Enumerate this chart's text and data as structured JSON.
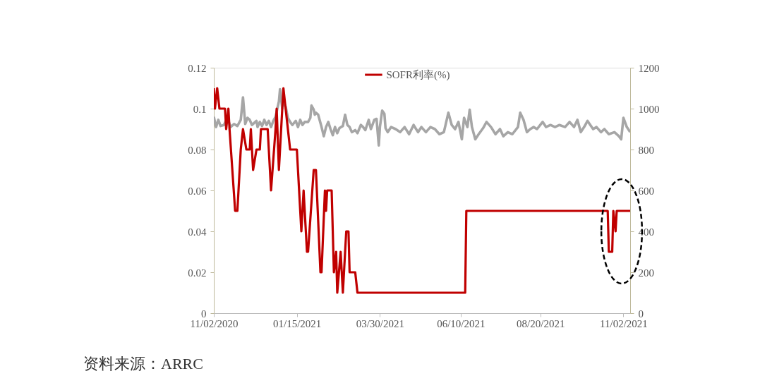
{
  "chart_data": {
    "type": "line",
    "series": [
      {
        "name": "SOFR利率(%)",
        "color": "#c00000",
        "x": [
          "2020-11-02",
          "2020-11-03",
          "2020-11-05",
          "2020-11-07",
          "2020-11-12",
          "2020-11-13",
          "2020-11-15",
          "2020-11-16",
          "2020-11-21",
          "2020-11-23",
          "2020-11-26",
          "2020-11-28",
          "2020-12-01",
          "2020-12-04",
          "2020-12-05",
          "2020-12-07",
          "2020-12-10",
          "2020-12-13",
          "2020-12-14",
          "2020-12-20",
          "2020-12-23",
          "2020-12-27",
          "2020-12-28",
          "2020-12-30",
          "2021-01-02",
          "2021-01-03",
          "2021-01-05",
          "2021-01-07",
          "2021-01-09",
          "2021-01-15",
          "2021-01-19",
          "2021-01-21",
          "2021-01-24",
          "2021-01-25",
          "2021-01-30",
          "2021-02-01",
          "2021-02-05",
          "2021-02-06",
          "2021-02-09",
          "2021-02-10",
          "2021-02-11",
          "2021-02-15",
          "2021-02-17",
          "2021-02-19",
          "2021-02-20",
          "2021-02-23",
          "2021-02-25",
          "2021-02-28",
          "2021-03-02",
          "2021-03-03",
          "2021-03-08",
          "2021-03-10",
          "2021-06-14",
          "2021-06-15",
          "2021-10-19",
          "2021-10-20",
          "2021-10-23",
          "2021-10-24",
          "2021-10-26",
          "2021-10-27",
          "2021-11-08"
        ],
        "values": [
          0.11,
          0.1,
          0.11,
          0.1,
          0.1,
          0.09,
          0.1,
          0.09,
          0.05,
          0.05,
          0.08,
          0.09,
          0.08,
          0.08,
          0.09,
          0.07,
          0.08,
          0.08,
          0.09,
          0.09,
          0.06,
          0.09,
          0.1,
          0.07,
          0.1,
          0.11,
          0.1,
          0.09,
          0.08,
          0.08,
          0.04,
          0.06,
          0.03,
          0.03,
          0.07,
          0.07,
          0.02,
          0.02,
          0.06,
          0.05,
          0.06,
          0.06,
          0.02,
          0.03,
          0.01,
          0.03,
          0.01,
          0.04,
          0.04,
          0.02,
          0.02,
          0.01,
          0.01,
          0.05,
          0.05,
          0.03,
          0.03,
          0.05,
          0.04,
          0.05,
          0.05
        ]
      },
      {
        "color": "#a6a6a6",
        "axis": "y2",
        "x": [
          "2020-11-02",
          "2020-11-04",
          "2020-11-06",
          "2020-11-08",
          "2020-11-11",
          "2020-11-14",
          "2020-11-17",
          "2020-11-20",
          "2020-11-23",
          "2020-11-26",
          "2020-11-28",
          "2020-11-30",
          "2020-12-02",
          "2020-12-04",
          "2020-12-06",
          "2020-12-10",
          "2020-12-11",
          "2020-12-13",
          "2020-12-15",
          "2020-12-17",
          "2020-12-19",
          "2020-12-21",
          "2020-12-23",
          "2020-12-25",
          "2020-12-27",
          "2020-12-29",
          "2020-12-30",
          "2020-12-31",
          "2021-01-02",
          "2021-01-03",
          "2021-01-05",
          "2021-01-07",
          "2021-01-09",
          "2021-01-11",
          "2021-01-14",
          "2021-01-16",
          "2021-01-18",
          "2021-01-20",
          "2021-01-22",
          "2021-01-25",
          "2021-01-27",
          "2021-01-28",
          "2021-01-30",
          "2021-01-31",
          "2021-02-01",
          "2021-02-03",
          "2021-02-06",
          "2021-02-08",
          "2021-02-10",
          "2021-02-12",
          "2021-02-14",
          "2021-02-16",
          "2021-02-18",
          "2021-02-20",
          "2021-02-22",
          "2021-02-25",
          "2021-02-27",
          "2021-03-01",
          "2021-03-03",
          "2021-03-05",
          "2021-03-08",
          "2021-03-10",
          "2021-03-13",
          "2021-03-15",
          "2021-03-17",
          "2021-03-20",
          "2021-03-22",
          "2021-03-23",
          "2021-03-25",
          "2021-03-27",
          "2021-03-29",
          "2021-03-30",
          "2021-04-01",
          "2021-04-03",
          "2021-04-04",
          "2021-04-06",
          "2021-04-09",
          "2021-04-13",
          "2021-04-17",
          "2021-04-21",
          "2021-04-25",
          "2021-04-29",
          "2021-05-03",
          "2021-05-06",
          "2021-05-10",
          "2021-05-14",
          "2021-05-18",
          "2021-05-22",
          "2021-05-26",
          "2021-05-30",
          "2021-06-02",
          "2021-06-05",
          "2021-06-08",
          "2021-06-11",
          "2021-06-13",
          "2021-06-16",
          "2021-06-18",
          "2021-06-20",
          "2021-06-23",
          "2021-06-26",
          "2021-06-30",
          "2021-07-03",
          "2021-07-07",
          "2021-07-11",
          "2021-07-15",
          "2021-07-18",
          "2021-07-22",
          "2021-07-26",
          "2021-07-31",
          "2021-08-02",
          "2021-08-05",
          "2021-08-08",
          "2021-08-11",
          "2021-08-14",
          "2021-08-17",
          "2021-08-22",
          "2021-08-25",
          "2021-08-29",
          "2021-09-02",
          "2021-09-06",
          "2021-09-11",
          "2021-09-15",
          "2021-09-19",
          "2021-09-22",
          "2021-09-25",
          "2021-09-28",
          "2021-10-01",
          "2021-10-06",
          "2021-10-09",
          "2021-10-13",
          "2021-10-16",
          "2021-10-20",
          "2021-10-25",
          "2021-10-29",
          "2021-10-31",
          "2021-11-02",
          "2021-11-05",
          "2021-11-08"
        ],
        "values": [
          960,
          910,
          945,
          915,
          920,
          955,
          910,
          925,
          915,
          945,
          1055,
          925,
          955,
          945,
          920,
          940,
          910,
          935,
          915,
          945,
          920,
          940,
          910,
          940,
          960,
          1010,
          1035,
          1095,
          1000,
          1035,
          1010,
          955,
          935,
          920,
          940,
          910,
          945,
          920,
          935,
          935,
          955,
          1015,
          995,
          970,
          980,
          970,
          910,
          865,
          910,
          935,
          900,
          870,
          910,
          880,
          905,
          915,
          970,
          920,
          910,
          885,
          895,
          880,
          920,
          910,
          895,
          945,
          900,
          915,
          945,
          950,
          820,
          910,
          990,
          975,
          905,
          885,
          910,
          900,
          885,
          910,
          875,
          920,
          885,
          910,
          885,
          910,
          900,
          875,
          885,
          980,
          920,
          900,
          935,
          850,
          955,
          910,
          995,
          910,
          850,
          875,
          905,
          935,
          910,
          875,
          900,
          865,
          885,
          875,
          910,
          980,
          945,
          885,
          900,
          910,
          900,
          935,
          910,
          920,
          910,
          920,
          910,
          935,
          910,
          945,
          885,
          910,
          940,
          900,
          910,
          885,
          900,
          875,
          885,
          865,
          850,
          955,
          910,
          885
        ]
      }
    ],
    "xlim": [
      "2020-11-02",
      "2021-11-08"
    ],
    "xticks": [
      {
        "value": "2020-11-02",
        "label": "11/02/2020"
      },
      {
        "value": "2021-01-15",
        "label": "01/15/2021"
      },
      {
        "value": "2021-03-30",
        "label": "03/30/2021"
      },
      {
        "value": "2021-06-10",
        "label": "06/10/2021"
      },
      {
        "value": "2021-08-20",
        "label": "08/20/2021"
      },
      {
        "value": "2021-11-02",
        "label": "11/02/2021"
      }
    ],
    "ylim": [
      0,
      0.12
    ],
    "yticks": [
      0,
      0.02,
      0.04,
      0.06,
      0.08,
      0.1,
      0.12
    ],
    "y2lim": [
      0,
      1200
    ],
    "y2ticks": [
      0,
      200,
      400,
      600,
      800,
      1000,
      1200
    ],
    "legend": "top",
    "annotations": [
      "资料来源：ARRC"
    ]
  }
}
